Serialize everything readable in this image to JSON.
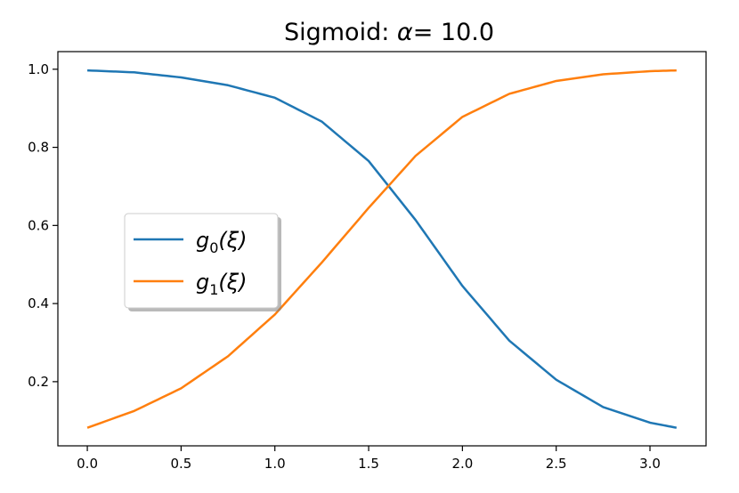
{
  "chart_data": {
    "type": "line",
    "title": "Sigmoid: α =  10.0",
    "title_prefix": "Sigmoid: ",
    "title_symbol": "α",
    "title_value": "=  10.0",
    "xlabel": "",
    "ylabel": "",
    "xlim": [
      -0.157,
      3.299
    ],
    "ylim": [
      0.0357,
      1.0451
    ],
    "xticks": [
      0.0,
      0.5,
      1.0,
      1.5,
      2.0,
      2.5,
      3.0
    ],
    "xtick_labels": [
      "0.0",
      "0.5",
      "1.0",
      "1.5",
      "2.0",
      "2.5",
      "3.0"
    ],
    "yticks": [
      0.2,
      0.4,
      0.6,
      0.8,
      1.0
    ],
    "ytick_labels": [
      "0.2",
      "0.4",
      "0.6",
      "0.8",
      "1.0"
    ],
    "grid": false,
    "legend_position": "center-left",
    "x": [
      0.0,
      0.25,
      0.5,
      0.75,
      1.0,
      1.25,
      1.5,
      1.75,
      2.0,
      2.25,
      2.5,
      2.75,
      3.0,
      3.1416
    ],
    "series": [
      {
        "legend_main": "g",
        "legend_sub": "0",
        "legend_arg": "(ξ)",
        "color": "#1f77b4",
        "values": [
          0.997,
          0.992,
          0.979,
          0.959,
          0.927,
          0.866,
          0.765,
          0.614,
          0.445,
          0.305,
          0.205,
          0.135,
          0.095,
          0.082
        ]
      },
      {
        "legend_main": "g",
        "legend_sub": "1",
        "legend_arg": "(ξ)",
        "color": "#ff7f0e",
        "values": [
          0.082,
          0.125,
          0.183,
          0.265,
          0.372,
          0.505,
          0.645,
          0.778,
          0.878,
          0.937,
          0.97,
          0.987,
          0.995,
          0.997
        ]
      }
    ]
  }
}
